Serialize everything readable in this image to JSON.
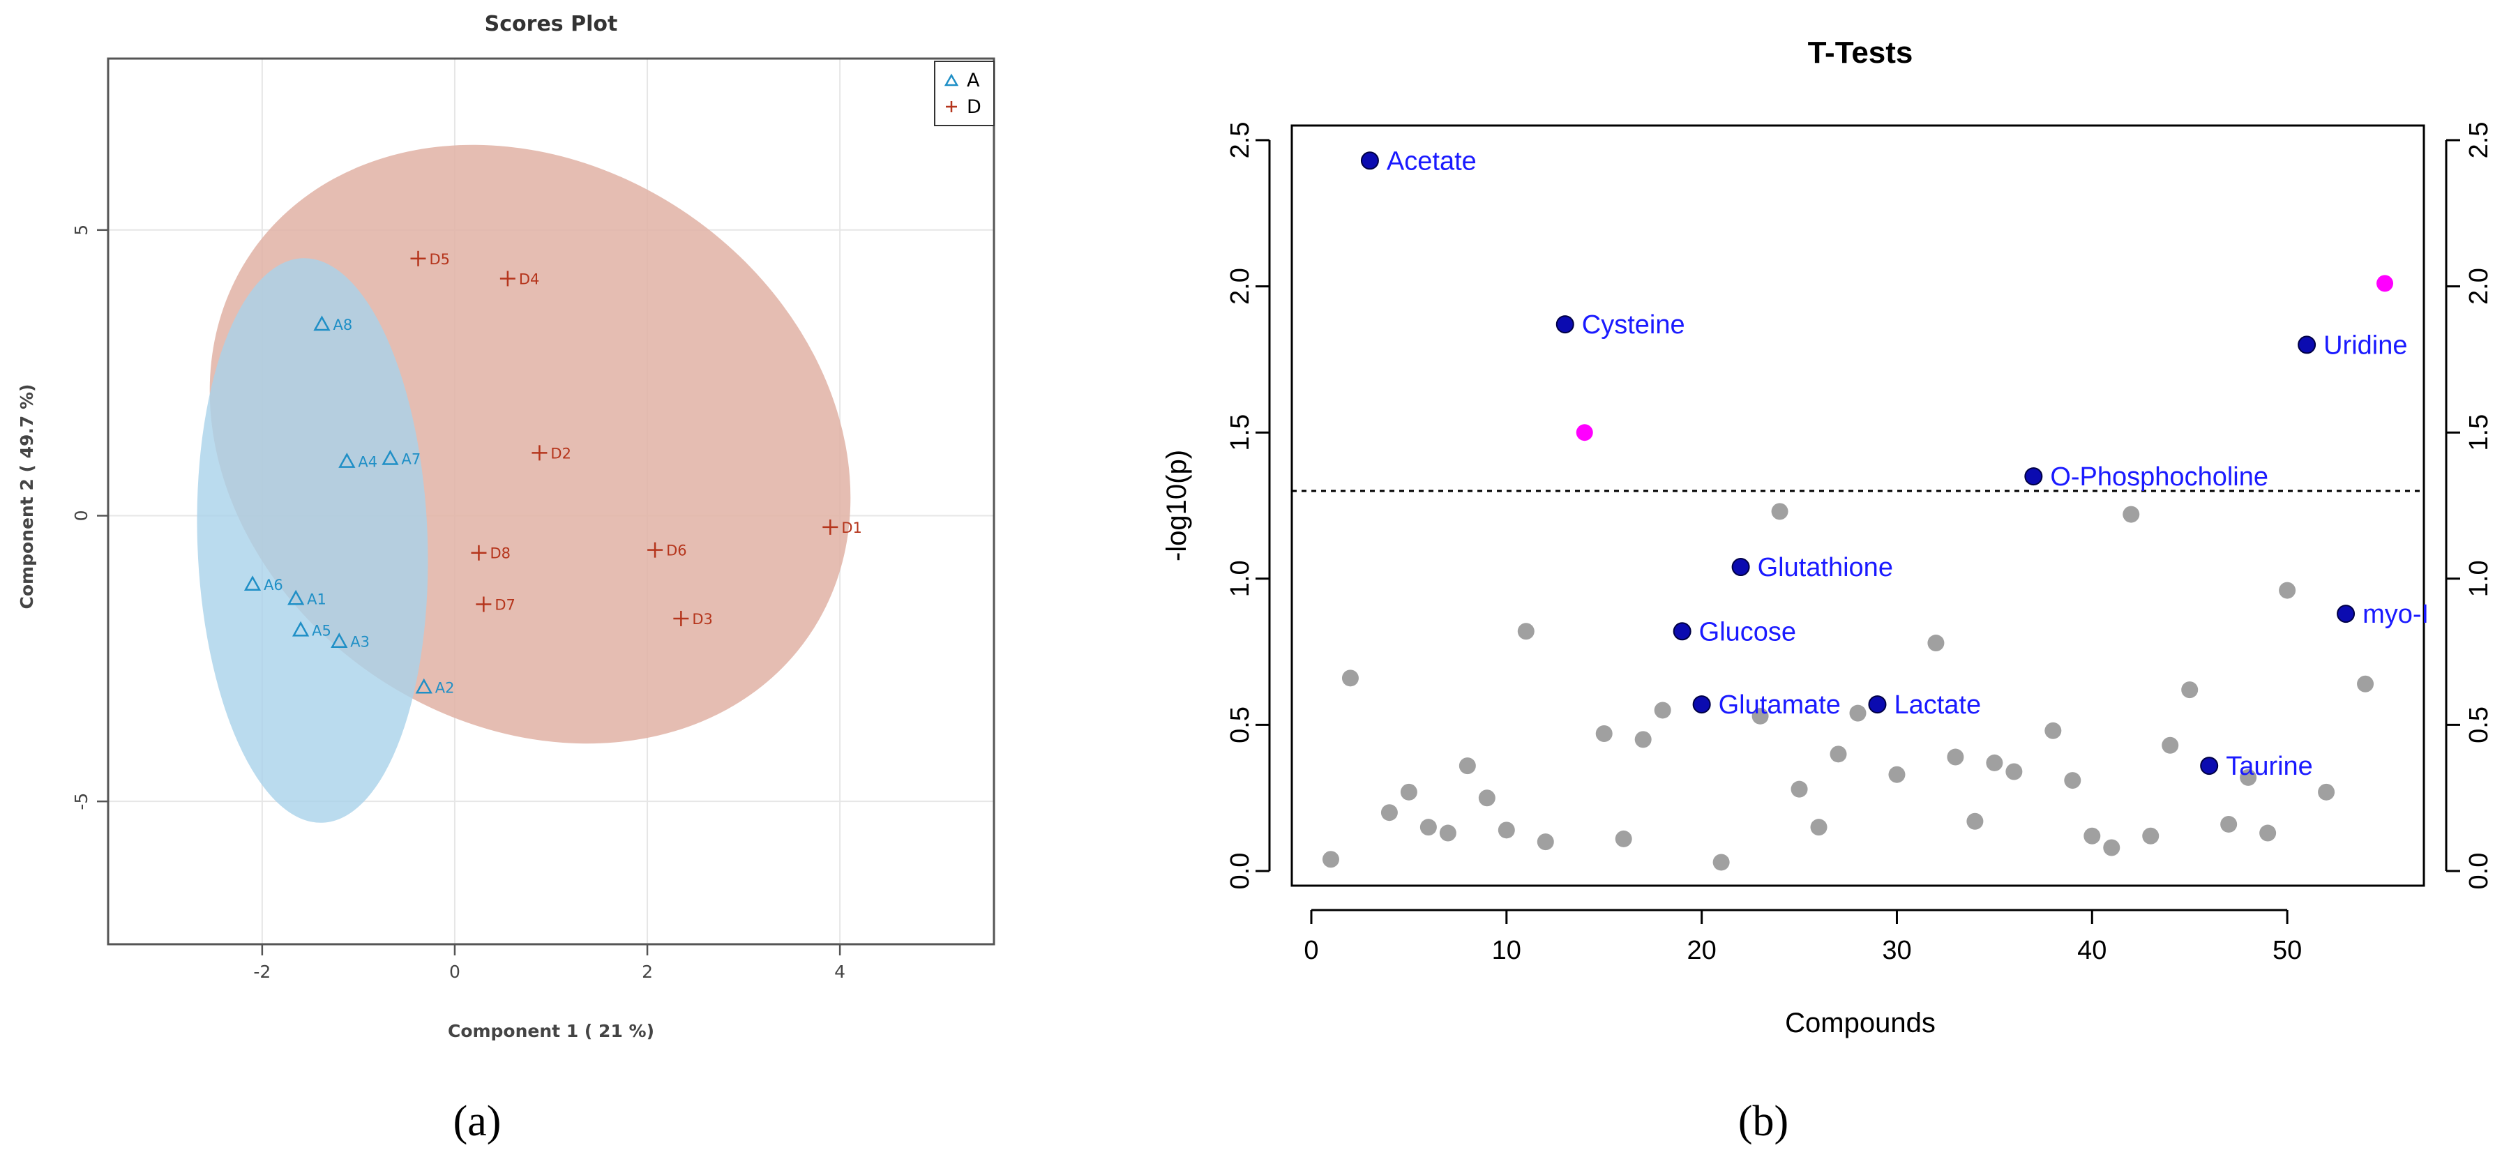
{
  "chart_data": [
    {
      "type": "scatter",
      "title": "Scores Plot",
      "xlabel": "Component 1 ( 21 %)",
      "ylabel": "Component 2 ( 49.7 %)",
      "xlim": [
        -3.6,
        5.6
      ],
      "ylim": [
        -7.5,
        8.0
      ],
      "xticks": [
        "-2",
        "0",
        "2",
        "4"
      ],
      "yticks": [
        "-5",
        "0",
        "5"
      ],
      "grid": true,
      "legend_position": "top-right",
      "series": [
        {
          "name": "A",
          "marker": "triangle",
          "color": "#1f8fc6",
          "ellipse_color": "#a9d2ea",
          "points": [
            {
              "label": "A1",
              "x": -1.65,
              "y": -1.45
            },
            {
              "label": "A2",
              "x": -0.32,
              "y": -3.0
            },
            {
              "label": "A3",
              "x": -1.2,
              "y": -2.2
            },
            {
              "label": "A4",
              "x": -1.12,
              "y": 0.95
            },
            {
              "label": "A5",
              "x": -1.6,
              "y": -2.0
            },
            {
              "label": "A6",
              "x": -2.1,
              "y": -1.2
            },
            {
              "label": "A7",
              "x": -0.67,
              "y": 1.0
            },
            {
              "label": "A8",
              "x": -1.38,
              "y": 3.35
            }
          ]
        },
        {
          "name": "D",
          "marker": "plus",
          "color": "#b5351c",
          "ellipse_color": "#e1b2a4",
          "points": [
            {
              "label": "D1",
              "x": 3.9,
              "y": -0.2
            },
            {
              "label": "D2",
              "x": 0.88,
              "y": 1.1
            },
            {
              "label": "D3",
              "x": 2.35,
              "y": -1.8
            },
            {
              "label": "D4",
              "x": 0.55,
              "y": 4.15
            },
            {
              "label": "D5",
              "x": -0.38,
              "y": 4.5
            },
            {
              "label": "D6",
              "x": 2.08,
              "y": -0.6
            },
            {
              "label": "D7",
              "x": 0.3,
              "y": -1.55
            },
            {
              "label": "D8",
              "x": 0.25,
              "y": -0.65
            }
          ]
        }
      ]
    },
    {
      "type": "scatter",
      "title": "T-Tests",
      "xlabel": "Compounds",
      "ylabel": "-log10(p)",
      "xlim": [
        -1,
        57
      ],
      "ylim": [
        -0.05,
        2.55
      ],
      "xticks": [
        "0",
        "10",
        "20",
        "30",
        "40",
        "50"
      ],
      "yticks": [
        "0.0",
        "0.5",
        "1.0",
        "1.5",
        "2.0",
        "2.5"
      ],
      "threshold": 1.3,
      "colors": {
        "labeled": "#0b0bb0",
        "significant": "#ff00ff",
        "other": "#a0a0a0",
        "label_text": "#1a1aff"
      },
      "labeled_points": [
        {
          "label": "Acetate",
          "x": 3,
          "y": 2.43
        },
        {
          "label": "Cysteine",
          "x": 13,
          "y": 1.87
        },
        {
          "label": "Uridine",
          "x": 51,
          "y": 1.8
        },
        {
          "label": "O-Phosphocholine",
          "x": 37,
          "y": 1.35
        },
        {
          "label": "Glutathione",
          "x": 22,
          "y": 1.04
        },
        {
          "label": "Glucose",
          "x": 19,
          "y": 0.82
        },
        {
          "label": "myo-I",
          "x": 53,
          "y": 0.88
        },
        {
          "label": "Glutamate",
          "x": 20,
          "y": 0.57
        },
        {
          "label": "Lactate",
          "x": 29,
          "y": 0.57
        },
        {
          "label": "Taurine",
          "x": 46,
          "y": 0.36
        }
      ],
      "significant_points": [
        {
          "x": 14,
          "y": 1.5
        },
        {
          "x": 55,
          "y": 2.01
        }
      ],
      "other_points": [
        {
          "x": 1,
          "y": 0.04
        },
        {
          "x": 2,
          "y": 0.66
        },
        {
          "x": 4,
          "y": 0.2
        },
        {
          "x": 5,
          "y": 0.27
        },
        {
          "x": 6,
          "y": 0.15
        },
        {
          "x": 7,
          "y": 0.13
        },
        {
          "x": 8,
          "y": 0.36
        },
        {
          "x": 9,
          "y": 0.25
        },
        {
          "x": 10,
          "y": 0.14
        },
        {
          "x": 11,
          "y": 0.82
        },
        {
          "x": 12,
          "y": 0.1
        },
        {
          "x": 15,
          "y": 0.47
        },
        {
          "x": 16,
          "y": 0.11
        },
        {
          "x": 17,
          "y": 0.45
        },
        {
          "x": 18,
          "y": 0.55
        },
        {
          "x": 21,
          "y": 0.03
        },
        {
          "x": 23,
          "y": 0.53
        },
        {
          "x": 24,
          "y": 1.23
        },
        {
          "x": 25,
          "y": 0.28
        },
        {
          "x": 26,
          "y": 0.15
        },
        {
          "x": 27,
          "y": 0.4
        },
        {
          "x": 28,
          "y": 0.54
        },
        {
          "x": 30,
          "y": 0.33
        },
        {
          "x": 32,
          "y": 0.78
        },
        {
          "x": 33,
          "y": 0.39
        },
        {
          "x": 34,
          "y": 0.17
        },
        {
          "x": 35,
          "y": 0.37
        },
        {
          "x": 36,
          "y": 0.34
        },
        {
          "x": 38,
          "y": 0.48
        },
        {
          "x": 39,
          "y": 0.31
        },
        {
          "x": 40,
          "y": 0.12
        },
        {
          "x": 41,
          "y": 0.08
        },
        {
          "x": 42,
          "y": 1.22
        },
        {
          "x": 43,
          "y": 0.12
        },
        {
          "x": 44,
          "y": 0.43
        },
        {
          "x": 45,
          "y": 0.62
        },
        {
          "x": 47,
          "y": 0.16
        },
        {
          "x": 48,
          "y": 0.32
        },
        {
          "x": 49,
          "y": 0.13
        },
        {
          "x": 50,
          "y": 0.96
        },
        {
          "x": 52,
          "y": 0.27
        },
        {
          "x": 54,
          "y": 0.64
        }
      ]
    }
  ],
  "captions": {
    "a": "(a)",
    "b": "(b)"
  }
}
